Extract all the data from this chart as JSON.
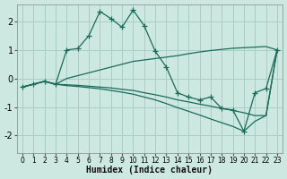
{
  "xlabel": "Humidex (Indice chaleur)",
  "background_color": "#cce8e0",
  "grid_color": "#a8cfc5",
  "line_color": "#1a6b5a",
  "xlim": [
    -0.5,
    23.5
  ],
  "ylim": [
    -2.6,
    2.6
  ],
  "xticks": [
    0,
    1,
    2,
    3,
    4,
    5,
    6,
    7,
    8,
    9,
    10,
    11,
    12,
    13,
    14,
    15,
    16,
    17,
    18,
    19,
    20,
    21,
    22,
    23
  ],
  "yticks": [
    -2,
    -1,
    0,
    1,
    2
  ],
  "x": [
    0,
    1,
    2,
    3,
    4,
    5,
    6,
    7,
    8,
    9,
    10,
    11,
    12,
    13,
    14,
    15,
    16,
    17,
    18,
    19,
    20,
    21,
    22,
    23
  ],
  "main_y": [
    -0.3,
    -0.2,
    -0.1,
    -0.2,
    1.0,
    1.05,
    1.5,
    2.35,
    2.1,
    1.8,
    2.4,
    1.85,
    0.95,
    0.4,
    -0.5,
    -0.65,
    -0.75,
    -0.65,
    -1.05,
    -1.1,
    -1.85,
    -0.5,
    -0.35,
    1.0
  ],
  "upper_y": [
    -0.3,
    -0.2,
    -0.1,
    -0.2,
    0.0,
    0.1,
    0.2,
    0.3,
    0.4,
    0.5,
    0.6,
    0.65,
    0.7,
    0.75,
    0.8,
    0.87,
    0.93,
    0.98,
    1.02,
    1.06,
    1.08,
    1.1,
    1.12,
    1.0
  ],
  "lower_mid_y": [
    -0.3,
    -0.2,
    -0.1,
    -0.2,
    -0.22,
    -0.24,
    -0.27,
    -0.3,
    -0.33,
    -0.38,
    -0.42,
    -0.5,
    -0.57,
    -0.65,
    -0.75,
    -0.82,
    -0.9,
    -0.97,
    -1.05,
    -1.12,
    -1.2,
    -1.3,
    -1.3,
    1.0
  ],
  "lower_y": [
    -0.3,
    -0.2,
    -0.1,
    -0.2,
    -0.25,
    -0.28,
    -0.32,
    -0.36,
    -0.42,
    -0.48,
    -0.55,
    -0.65,
    -0.75,
    -0.88,
    -1.02,
    -1.15,
    -1.28,
    -1.42,
    -1.55,
    -1.68,
    -1.85,
    -1.5,
    -1.3,
    1.0
  ]
}
